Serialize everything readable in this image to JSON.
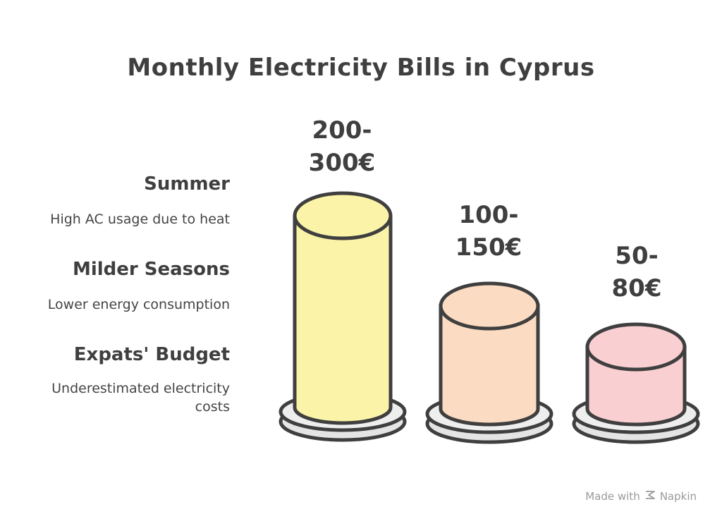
{
  "title": "Monthly Electricity Bills in Cyprus",
  "items": [
    {
      "heading": "Summer",
      "description": "High AC usage due to heat",
      "value_line1": "200-",
      "value_line2": "300€",
      "color": "#fbf3a8"
    },
    {
      "heading": "Milder Seasons",
      "description": "Lower energy consumption",
      "value_line1": "100-",
      "value_line2": "150€",
      "color": "#fbdcc3"
    },
    {
      "heading": "Expats' Budget",
      "description_line1": "Underestimated electricity",
      "description_line2": "costs",
      "value_line1": "50-",
      "value_line2": "80€",
      "color": "#f9cfd2"
    }
  ],
  "footer": {
    "prefix": "Made with",
    "brand": "Napkin",
    "icon": "napkin-logo-icon"
  },
  "colors": {
    "ink": "#3f3f3f",
    "plate": "#e6e6e6"
  }
}
